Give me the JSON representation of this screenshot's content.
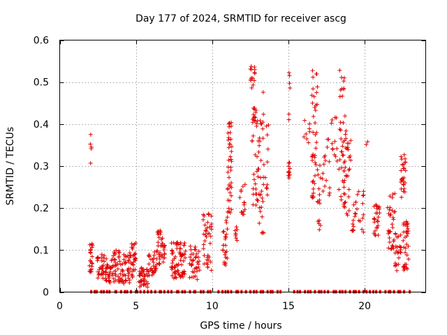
{
  "chart_data": {
    "type": "scatter",
    "title": "Day 177 of 2024, SRMTID for receiver ascg",
    "xlabel": "GPS time / hours",
    "ylabel": "SRMTID / TECUs",
    "xlim": [
      0,
      24
    ],
    "ylim": [
      0,
      0.6
    ],
    "x_ticks": [
      0,
      5,
      10,
      15,
      20
    ],
    "x_tick_labels": [
      "0",
      "5",
      "10",
      "15",
      "20"
    ],
    "y_ticks": [
      0,
      0.1,
      0.2,
      0.3,
      0.4,
      0.5,
      0.6
    ],
    "y_tick_labels": [
      "0",
      "0.1",
      "0.2",
      "0.3",
      "0.4",
      "0.5",
      "0.6"
    ],
    "grid": true,
    "marker": "plus",
    "color": "#e00000",
    "clusters": [
      {
        "x": [
          1.95,
          2.15
        ],
        "y": [
          0.04,
          0.12
        ],
        "n": 22
      },
      {
        "x": [
          2.0,
          2.1
        ],
        "y": [
          0.28,
          0.39
        ],
        "n": 5
      },
      {
        "x": [
          2.45,
          2.95
        ],
        "y": [
          0.03,
          0.09
        ],
        "n": 28
      },
      {
        "x": [
          3.0,
          3.5
        ],
        "y": [
          0.02,
          0.08
        ],
        "n": 34
      },
      {
        "x": [
          3.5,
          4.0
        ],
        "y": [
          0.02,
          0.1
        ],
        "n": 34
      },
      {
        "x": [
          4.0,
          4.6
        ],
        "y": [
          0.02,
          0.09
        ],
        "n": 34
      },
      {
        "x": [
          4.5,
          5.0
        ],
        "y": [
          0.03,
          0.12
        ],
        "n": 32
      },
      {
        "x": [
          5.2,
          5.8
        ],
        "y": [
          0.01,
          0.06
        ],
        "n": 40
      },
      {
        "x": [
          5.8,
          6.4
        ],
        "y": [
          0.04,
          0.1
        ],
        "n": 30
      },
      {
        "x": [
          6.4,
          6.9
        ],
        "y": [
          0.06,
          0.15
        ],
        "n": 36
      },
      {
        "x": [
          7.3,
          7.7
        ],
        "y": [
          0.03,
          0.12
        ],
        "n": 30
      },
      {
        "x": [
          7.7,
          8.3
        ],
        "y": [
          0.03,
          0.12
        ],
        "n": 40
      },
      {
        "x": [
          8.5,
          9.2
        ],
        "y": [
          0.03,
          0.11
        ],
        "n": 36
      },
      {
        "x": [
          9.4,
          10.0
        ],
        "y": [
          0.05,
          0.2
        ],
        "n": 40
      },
      {
        "x": [
          10.7,
          11.0
        ],
        "y": [
          0.06,
          0.18
        ],
        "n": 24
      },
      {
        "x": [
          11.0,
          11.3
        ],
        "y": [
          0.18,
          0.41
        ],
        "n": 40
      },
      {
        "x": [
          11.5,
          11.7
        ],
        "y": [
          0.12,
          0.16
        ],
        "n": 8
      },
      {
        "x": [
          11.8,
          12.2
        ],
        "y": [
          0.17,
          0.26
        ],
        "n": 14
      },
      {
        "x": [
          12.5,
          12.8
        ],
        "y": [
          0.48,
          0.54
        ],
        "n": 14
      },
      {
        "x": [
          12.6,
          13.0
        ],
        "y": [
          0.2,
          0.45
        ],
        "n": 36
      },
      {
        "x": [
          13.0,
          13.4
        ],
        "y": [
          0.12,
          0.48
        ],
        "n": 34
      },
      {
        "x": [
          13.4,
          13.7
        ],
        "y": [
          0.22,
          0.42
        ],
        "n": 10
      },
      {
        "x": [
          14.9,
          15.1
        ],
        "y": [
          0.27,
          0.31
        ],
        "n": 10
      },
      {
        "x": [
          15.0,
          15.1
        ],
        "y": [
          0.4,
          0.54
        ],
        "n": 6
      },
      {
        "x": [
          16.0,
          16.4
        ],
        "y": [
          0.35,
          0.41
        ],
        "n": 8
      },
      {
        "x": [
          16.5,
          16.9
        ],
        "y": [
          0.22,
          0.54
        ],
        "n": 40
      },
      {
        "x": [
          16.9,
          17.1
        ],
        "y": [
          0.12,
          0.31
        ],
        "n": 14
      },
      {
        "x": [
          17.2,
          17.8
        ],
        "y": [
          0.23,
          0.37
        ],
        "n": 16
      },
      {
        "x": [
          17.8,
          18.2
        ],
        "y": [
          0.3,
          0.43
        ],
        "n": 12
      },
      {
        "x": [
          18.3,
          18.7
        ],
        "y": [
          0.45,
          0.55
        ],
        "n": 10
      },
      {
        "x": [
          18.3,
          18.7
        ],
        "y": [
          0.2,
          0.42
        ],
        "n": 30
      },
      {
        "x": [
          18.7,
          19.1
        ],
        "y": [
          0.18,
          0.43
        ],
        "n": 28
      },
      {
        "x": [
          19.1,
          19.5
        ],
        "y": [
          0.14,
          0.24
        ],
        "n": 14
      },
      {
        "x": [
          19.5,
          20.0
        ],
        "y": [
          0.14,
          0.24
        ],
        "n": 12
      },
      {
        "x": [
          20.0,
          20.2
        ],
        "y": [
          0.34,
          0.36
        ],
        "n": 2
      },
      {
        "x": [
          20.6,
          21.0
        ],
        "y": [
          0.13,
          0.21
        ],
        "n": 26
      },
      {
        "x": [
          21.5,
          22.0
        ],
        "y": [
          0.1,
          0.24
        ],
        "n": 32
      },
      {
        "x": [
          22.0,
          22.4
        ],
        "y": [
          0.05,
          0.14
        ],
        "n": 24
      },
      {
        "x": [
          22.35,
          22.7
        ],
        "y": [
          0.22,
          0.33
        ],
        "n": 28
      },
      {
        "x": [
          22.5,
          22.9
        ],
        "y": [
          0.05,
          0.17
        ],
        "n": 34
      }
    ],
    "zero_x_ranges": [
      [
        1.9,
        10.0
      ],
      [
        10.3,
        14.6
      ],
      [
        15.3,
        23.0
      ]
    ],
    "zero_points_n": 90
  }
}
